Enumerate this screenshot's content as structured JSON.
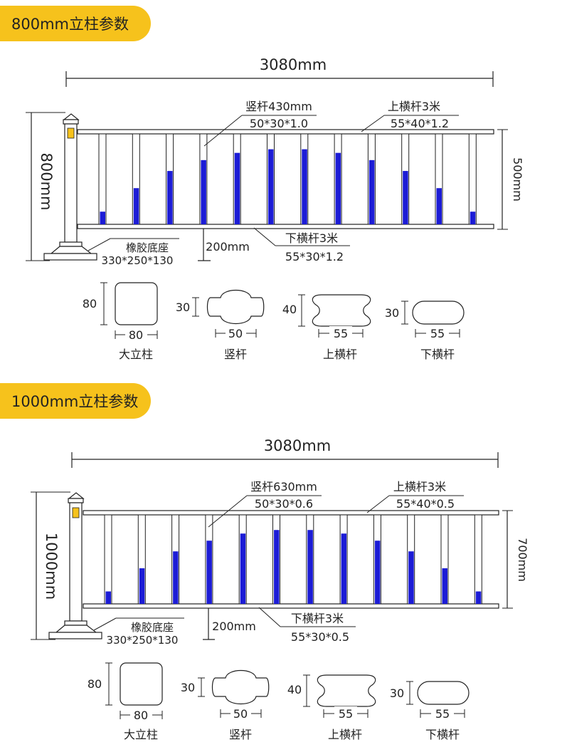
{
  "sections": [
    {
      "title": "800mm立柱参数",
      "total_length": "3080mm",
      "height": "800mm",
      "bar_height": "500mm",
      "vertical_bar": "竖杆430mm",
      "vertical_bar_spec": "50*30*1.0",
      "top_rail": "上横杆3米",
      "top_rail_spec": "55*40*1.2",
      "bottom_rail": "下横杆3米",
      "bottom_rail_spec": "55*30*1.2",
      "base": "橡胶底座",
      "base_spec": "330*250*130",
      "ground_clearance": "200mm",
      "profiles": [
        {
          "name": "大立柱",
          "width": "80",
          "height": "80"
        },
        {
          "name": "竖杆",
          "width": "50",
          "height": "30"
        },
        {
          "name": "上横杆",
          "width": "55",
          "height": "40"
        },
        {
          "name": "下横杆",
          "width": "55",
          "height": "30"
        }
      ]
    },
    {
      "title": "1000mm立柱参数",
      "total_length": "3080mm",
      "height": "1000mm",
      "bar_height": "700mm",
      "vertical_bar": "竖杆630mm",
      "vertical_bar_spec": "50*30*0.6",
      "top_rail": "上横杆3米",
      "top_rail_spec": "55*40*0.5",
      "bottom_rail": "下横杆3米",
      "bottom_rail_spec": "55*30*0.5",
      "base": "橡胶底座",
      "base_spec": "330*250*130",
      "ground_clearance": "200mm",
      "profiles": [
        {
          "name": "大立柱",
          "width": "80",
          "height": "80"
        },
        {
          "name": "竖杆",
          "width": "50",
          "height": "30"
        },
        {
          "name": "上横杆",
          "width": "55",
          "height": "40"
        },
        {
          "name": "下横杆",
          "width": "55",
          "height": "30"
        }
      ]
    }
  ],
  "colors": {
    "accent": "#f6c21c",
    "bar_fill": "#1c1cd6",
    "line": "#222222",
    "reflector": "#f6c21c"
  }
}
